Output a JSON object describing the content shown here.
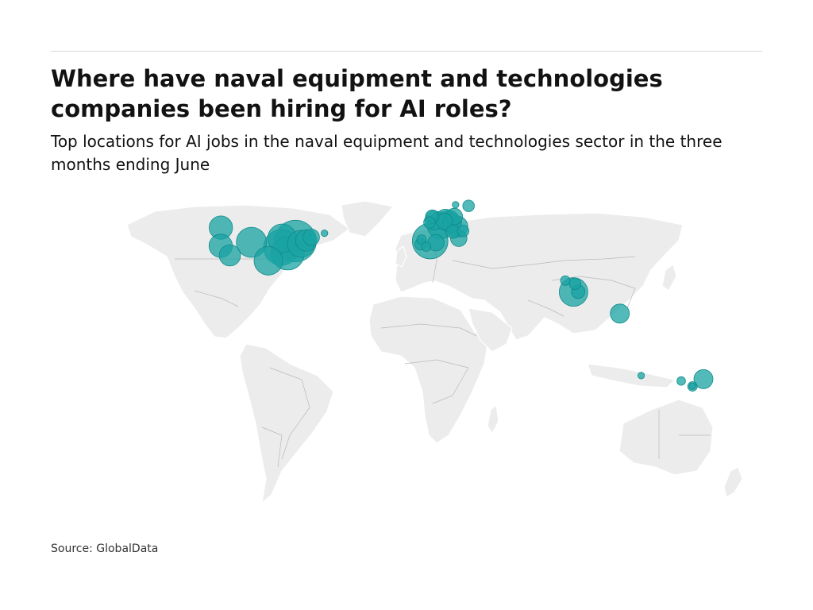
{
  "title": "Where have naval equipment and technologies companies been hiring for AI roles?",
  "subtitle": "Top locations for AI jobs in the naval equipment and technologies sector in the three months ending June",
  "source": "Source: GlobalData",
  "colors": {
    "bubble": "#1aa3a3",
    "land": "#ececec",
    "border": "#b9b9b9"
  },
  "chart_data": {
    "type": "bubble-map",
    "series": [
      {
        "values": [
          {
            "lon": -122.3,
            "lat": 47.6,
            "size": 6
          },
          {
            "lon": -122.4,
            "lat": 37.8,
            "size": 6
          },
          {
            "lon": -117.2,
            "lat": 32.7,
            "size": 5
          },
          {
            "lon": -105.0,
            "lat": 39.7,
            "size": 10
          },
          {
            "lon": -87.6,
            "lat": 41.9,
            "size": 9
          },
          {
            "lon": -84.4,
            "lat": 33.7,
            "size": 12
          },
          {
            "lon": -88.0,
            "lat": 37.0,
            "size": 14
          },
          {
            "lon": -80.0,
            "lat": 40.4,
            "size": 19
          },
          {
            "lon": -77.0,
            "lat": 38.9,
            "size": 8
          },
          {
            "lon": -74.0,
            "lat": 40.7,
            "size": 5
          },
          {
            "lon": -71.1,
            "lat": 42.4,
            "size": 3
          },
          {
            "lon": -63.6,
            "lat": 44.6,
            "size": 0.5
          },
          {
            "lon": -95.4,
            "lat": 29.8,
            "size": 9
          },
          {
            "lon": -2.5,
            "lat": 53.5,
            "size": 2
          },
          {
            "lon": -1.3,
            "lat": 51.5,
            "size": 4
          },
          {
            "lon": -4.1,
            "lat": 50.4,
            "size": 1.5
          },
          {
            "lon": 2.3,
            "lat": 48.9,
            "size": 8
          },
          {
            "lon": 4.9,
            "lat": 52.4,
            "size": 4
          },
          {
            "lon": 7.0,
            "lat": 51.2,
            "size": 5
          },
          {
            "lon": 10.0,
            "lat": 53.6,
            "size": 3
          },
          {
            "lon": 11.6,
            "lat": 48.1,
            "size": 5
          },
          {
            "lon": 8.7,
            "lat": 50.1,
            "size": 4
          },
          {
            "lon": 12.5,
            "lat": 41.9,
            "size": 3
          },
          {
            "lon": 9.2,
            "lat": 45.5,
            "size": 2
          },
          {
            "lon": 15.0,
            "lat": 45.8,
            "size": 1.5
          },
          {
            "lon": 18.1,
            "lat": 59.3,
            "size": 1.5
          },
          {
            "lon": -3.7,
            "lat": 40.4,
            "size": 14
          },
          {
            "lon": -0.4,
            "lat": 39.5,
            "size": 3
          },
          {
            "lon": -8.6,
            "lat": 41.2,
            "size": 1
          },
          {
            "lon": -9.1,
            "lat": 38.7,
            "size": 1.5
          },
          {
            "lon": -5.9,
            "lat": 37.4,
            "size": 1
          },
          {
            "lon": 4.4,
            "lat": 50.8,
            "size": 3
          },
          {
            "lon": 10.7,
            "lat": 59.9,
            "size": 0.5
          },
          {
            "lon": 72.9,
            "lat": 19.1,
            "size": 1
          },
          {
            "lon": 77.6,
            "lat": 13.0,
            "size": 9
          },
          {
            "lon": 78.5,
            "lat": 17.4,
            "size": 1.5
          },
          {
            "lon": 80.2,
            "lat": 13.1,
            "size": 2
          },
          {
            "lon": 103.8,
            "lat": 1.35,
            "size": 4
          },
          {
            "lon": 151.2,
            "lat": -33.9,
            "size": 4
          },
          {
            "lon": 145.0,
            "lat": -37.8,
            "size": 1
          },
          {
            "lon": 138.6,
            "lat": -34.9,
            "size": 0.8
          },
          {
            "lon": 115.9,
            "lat": -32.0,
            "size": 0.5
          },
          {
            "lon": 144.9,
            "lat": -37.7,
            "size": 0.5
          }
        ]
      }
    ]
  }
}
